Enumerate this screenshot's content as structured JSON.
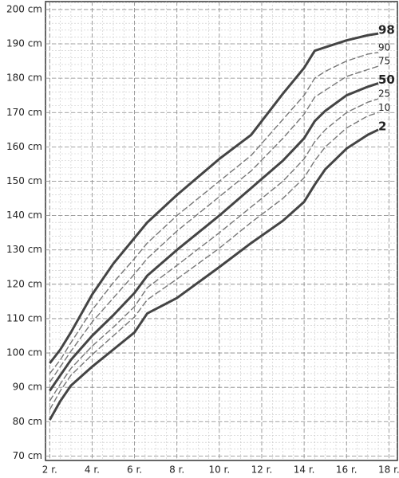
{
  "chart_data": {
    "type": "line",
    "x": [
      2,
      2.5,
      3,
      4,
      5,
      6,
      6.6,
      8,
      10,
      11.5,
      13,
      14,
      14.5,
      15,
      16,
      17,
      17.5
    ],
    "series": [
      {
        "name": "98",
        "color": "#444444",
        "style": "solid",
        "values": [
          97,
          101,
          106,
          117,
          126,
          133.5,
          138,
          146,
          156.5,
          163.5,
          175.5,
          183,
          188,
          189,
          191,
          192.5,
          193
        ]
      },
      {
        "name": "90",
        "color": "#777777",
        "style": "dashed",
        "values": [
          94,
          98,
          103,
          112.5,
          120.5,
          127.5,
          132,
          140,
          150,
          157.5,
          168,
          175,
          180,
          182,
          185,
          187,
          187.5
        ]
      },
      {
        "name": "75",
        "color": "#777777",
        "style": "dashed",
        "values": [
          91.5,
          96,
          100.5,
          109,
          116,
          123,
          127.5,
          135.5,
          145.5,
          153,
          162.5,
          169.5,
          174.5,
          176.5,
          180.5,
          182.5,
          183.5
        ]
      },
      {
        "name": "50",
        "color": "#444444",
        "style": "solid",
        "values": [
          89,
          93.5,
          98,
          105,
          111,
          117.5,
          122.5,
          130,
          140,
          148,
          156,
          162.5,
          167.5,
          170.5,
          175,
          177.5,
          178.5
        ]
      },
      {
        "name": "25",
        "color": "#777777",
        "style": "dashed",
        "values": [
          86,
          91,
          95.5,
          102,
          107.5,
          113.5,
          119,
          125.5,
          135,
          142.5,
          150,
          156.5,
          161.5,
          165,
          170,
          173,
          174
        ]
      },
      {
        "name": "10",
        "color": "#777777",
        "style": "dashed",
        "values": [
          83.5,
          89,
          93.5,
          99.5,
          105,
          110.5,
          115.5,
          121.5,
          130.5,
          138,
          145,
          151,
          156,
          160,
          165.5,
          169,
          170
        ]
      },
      {
        "name": "2",
        "color": "#444444",
        "style": "solid",
        "values": [
          80.5,
          86,
          90.5,
          96,
          101,
          106,
          111.5,
          116,
          125,
          132,
          138.5,
          144,
          149,
          153.5,
          159.5,
          163.5,
          165
        ]
      }
    ],
    "xlim": [
      1.8,
      18.4
    ],
    "ylim": [
      68.7,
      202.3
    ],
    "xticks": [
      {
        "value": 2,
        "label": "2 r."
      },
      {
        "value": 4,
        "label": "4 r."
      },
      {
        "value": 6,
        "label": "6 r."
      },
      {
        "value": 8,
        "label": "8 r."
      },
      {
        "value": 10,
        "label": "10 r."
      },
      {
        "value": 12,
        "label": "12 r."
      },
      {
        "value": 14,
        "label": "14 r."
      },
      {
        "value": 16,
        "label": "16 r."
      },
      {
        "value": 18,
        "label": "18 r."
      }
    ],
    "yticks": [
      {
        "value": 70,
        "label": "70 cm"
      },
      {
        "value": 80,
        "label": "80 cm"
      },
      {
        "value": 90,
        "label": "90 cm"
      },
      {
        "value": 100,
        "label": "100 cm"
      },
      {
        "value": 110,
        "label": "110 cm"
      },
      {
        "value": 120,
        "label": "120 cm"
      },
      {
        "value": 130,
        "label": "130 cm"
      },
      {
        "value": 140,
        "label": "140 cm"
      },
      {
        "value": 150,
        "label": "150 cm"
      },
      {
        "value": 160,
        "label": "160 cm"
      },
      {
        "value": 170,
        "label": "170 cm"
      },
      {
        "value": 180,
        "label": "180 cm"
      },
      {
        "value": 190,
        "label": "190 cm"
      },
      {
        "value": 200,
        "label": "200 cm"
      }
    ],
    "grid": true,
    "minor_grid": {
      "x": 0.5,
      "y": 2
    }
  }
}
